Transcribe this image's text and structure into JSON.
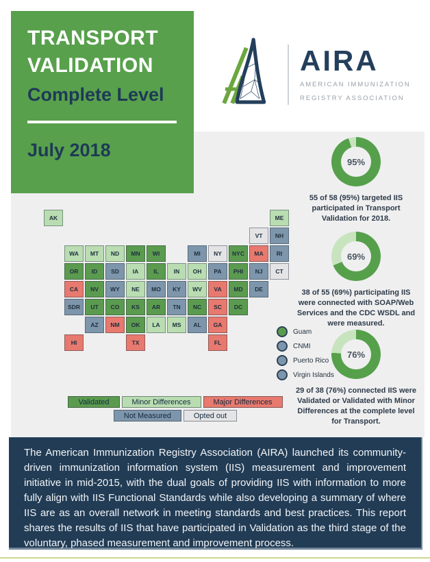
{
  "header": {
    "title1": "TRANSPORT",
    "title2": "VALIDATION",
    "subtitle": "Complete Level",
    "date": "July 2018",
    "bg_color": "#58a04c",
    "navy_color": "#1e3a56"
  },
  "logo": {
    "name": "AIRA",
    "org_line1": "AMERICAN IMMUNIZATION",
    "org_line2": "REGISTRY ASSOCIATION",
    "navy": "#243f5c",
    "green": "#6ca63e"
  },
  "stats": [
    {
      "percent": 95,
      "label": "95%",
      "caption": "55 of 58 (95%) targeted IIS participated in Transport Validation for 2018."
    },
    {
      "percent": 69,
      "label": "69%",
      "caption": "38 of 55 (69%) participating IIS were connected with SOAP/Web Services and the CDC WSDL and were measured."
    },
    {
      "percent": 76,
      "label": "76%",
      "caption": "29 of 38 (76%) connected IIS were Validated or Validated with Minor Differences at the complete level for Transport."
    }
  ],
  "donut_colors": {
    "dark": "#56a04b",
    "light": "#c8e4bf"
  },
  "map": {
    "status_colors": {
      "validated": "#5b9b4f",
      "minor": "#b9ddb1",
      "major": "#e8796e",
      "not_measured": "#7e96ab",
      "opted_out": "#e4e4e6"
    },
    "legend": [
      {
        "label": "Validated",
        "status": "validated"
      },
      {
        "label": "Minor Differences",
        "status": "minor"
      },
      {
        "label": "Major Differences",
        "status": "major"
      },
      {
        "label": "Not Measured",
        "status": "not_measured"
      },
      {
        "label": "Opted out",
        "status": "opted_out"
      }
    ],
    "states": [
      {
        "abbr": "AK",
        "status": "minor",
        "col": 0,
        "row": 0
      },
      {
        "abbr": "ME",
        "status": "minor",
        "col": 11,
        "row": 0
      },
      {
        "abbr": "VT",
        "status": "opted_out",
        "col": 10,
        "row": 1
      },
      {
        "abbr": "NH",
        "status": "not_measured",
        "col": 11,
        "row": 1
      },
      {
        "abbr": "WA",
        "status": "minor",
        "col": 1,
        "row": 2
      },
      {
        "abbr": "MT",
        "status": "minor",
        "col": 2,
        "row": 2
      },
      {
        "abbr": "ND",
        "status": "minor",
        "col": 3,
        "row": 2
      },
      {
        "abbr": "MN",
        "status": "validated",
        "col": 4,
        "row": 2
      },
      {
        "abbr": "WI",
        "status": "validated",
        "col": 5,
        "row": 2
      },
      {
        "abbr": "MI",
        "status": "not_measured",
        "col": 7,
        "row": 2
      },
      {
        "abbr": "NY",
        "status": "opted_out",
        "col": 8,
        "row": 2
      },
      {
        "abbr": "NYC",
        "status": "validated",
        "col": 9,
        "row": 2
      },
      {
        "abbr": "MA",
        "status": "major",
        "col": 10,
        "row": 2
      },
      {
        "abbr": "RI",
        "status": "not_measured",
        "col": 11,
        "row": 2
      },
      {
        "abbr": "OR",
        "status": "validated",
        "col": 1,
        "row": 3
      },
      {
        "abbr": "ID",
        "status": "validated",
        "col": 2,
        "row": 3
      },
      {
        "abbr": "SD",
        "status": "not_measured",
        "col": 3,
        "row": 3
      },
      {
        "abbr": "IA",
        "status": "minor",
        "col": 4,
        "row": 3
      },
      {
        "abbr": "IL",
        "status": "validated",
        "col": 5,
        "row": 3
      },
      {
        "abbr": "IN",
        "status": "minor",
        "col": 6,
        "row": 3
      },
      {
        "abbr": "OH",
        "status": "minor",
        "col": 7,
        "row": 3
      },
      {
        "abbr": "PA",
        "status": "not_measured",
        "col": 8,
        "row": 3
      },
      {
        "abbr": "PHI",
        "status": "validated",
        "col": 9,
        "row": 3
      },
      {
        "abbr": "NJ",
        "status": "not_measured",
        "col": 10,
        "row": 3
      },
      {
        "abbr": "CT",
        "status": "opted_out",
        "col": 11,
        "row": 3
      },
      {
        "abbr": "CA",
        "status": "major",
        "col": 1,
        "row": 4
      },
      {
        "abbr": "NV",
        "status": "validated",
        "col": 2,
        "row": 4
      },
      {
        "abbr": "WY",
        "status": "not_measured",
        "col": 3,
        "row": 4
      },
      {
        "abbr": "NE",
        "status": "minor",
        "col": 4,
        "row": 4
      },
      {
        "abbr": "MO",
        "status": "not_measured",
        "col": 5,
        "row": 4
      },
      {
        "abbr": "KY",
        "status": "not_measured",
        "col": 6,
        "row": 4
      },
      {
        "abbr": "WV",
        "status": "minor",
        "col": 7,
        "row": 4
      },
      {
        "abbr": "VA",
        "status": "major",
        "col": 8,
        "row": 4
      },
      {
        "abbr": "MD",
        "status": "validated",
        "col": 9,
        "row": 4
      },
      {
        "abbr": "DE",
        "status": "not_measured",
        "col": 10,
        "row": 4
      },
      {
        "abbr": "SDR",
        "status": "not_measured",
        "col": 1,
        "row": 5
      },
      {
        "abbr": "UT",
        "status": "validated",
        "col": 2,
        "row": 5
      },
      {
        "abbr": "CO",
        "status": "validated",
        "col": 3,
        "row": 5
      },
      {
        "abbr": "KS",
        "status": "validated",
        "col": 4,
        "row": 5
      },
      {
        "abbr": "AR",
        "status": "validated",
        "col": 5,
        "row": 5
      },
      {
        "abbr": "TN",
        "status": "not_measured",
        "col": 6,
        "row": 5
      },
      {
        "abbr": "NC",
        "status": "validated",
        "col": 7,
        "row": 5
      },
      {
        "abbr": "SC",
        "status": "major",
        "col": 8,
        "row": 5
      },
      {
        "abbr": "DC",
        "status": "validated",
        "col": 9,
        "row": 5
      },
      {
        "abbr": "AZ",
        "status": "not_measured",
        "col": 2,
        "row": 6
      },
      {
        "abbr": "NM",
        "status": "major",
        "col": 3,
        "row": 6
      },
      {
        "abbr": "OK",
        "status": "validated",
        "col": 4,
        "row": 6
      },
      {
        "abbr": "LA",
        "status": "minor",
        "col": 5,
        "row": 6
      },
      {
        "abbr": "MS",
        "status": "minor",
        "col": 6,
        "row": 6
      },
      {
        "abbr": "AL",
        "status": "not_measured",
        "col": 7,
        "row": 6
      },
      {
        "abbr": "GA",
        "status": "major",
        "col": 8,
        "row": 6
      },
      {
        "abbr": "HI",
        "status": "major",
        "col": 1,
        "row": 7
      },
      {
        "abbr": "TX",
        "status": "major",
        "col": 4,
        "row": 7
      },
      {
        "abbr": "FL",
        "status": "major",
        "col": 8,
        "row": 7
      }
    ],
    "territories": [
      {
        "name": "Guam",
        "status": "validated"
      },
      {
        "name": "CNMI",
        "status": "not_measured"
      },
      {
        "name": "Puerto Rico",
        "status": "not_measured"
      },
      {
        "name": "Virgin Islands",
        "status": "not_measured"
      }
    ]
  },
  "footer": {
    "paragraph": "The American Immunization Registry Association (AIRA) launched its community-driven immunization information system (IIS) measurement and improvement initiative in mid-2015, with the dual goals of providing IIS with information to more fully align with IIS Functional Standards while also developing a summary of where IIS are as an overall network in meeting standards and best practices. This report shares the results of IIS that have participated in Validation as the third stage of the voluntary, phased measurement and improvement process."
  },
  "chart_data": [
    {
      "type": "pie",
      "title": "Participation",
      "values": [
        95,
        5
      ],
      "labels": [
        "participated",
        "remainder"
      ]
    },
    {
      "type": "pie",
      "title": "Connected",
      "values": [
        69,
        31
      ],
      "labels": [
        "connected",
        "remainder"
      ]
    },
    {
      "type": "pie",
      "title": "Validated or Minor Differences",
      "values": [
        76,
        24
      ],
      "labels": [
        "validated_or_minor",
        "remainder"
      ]
    }
  ]
}
